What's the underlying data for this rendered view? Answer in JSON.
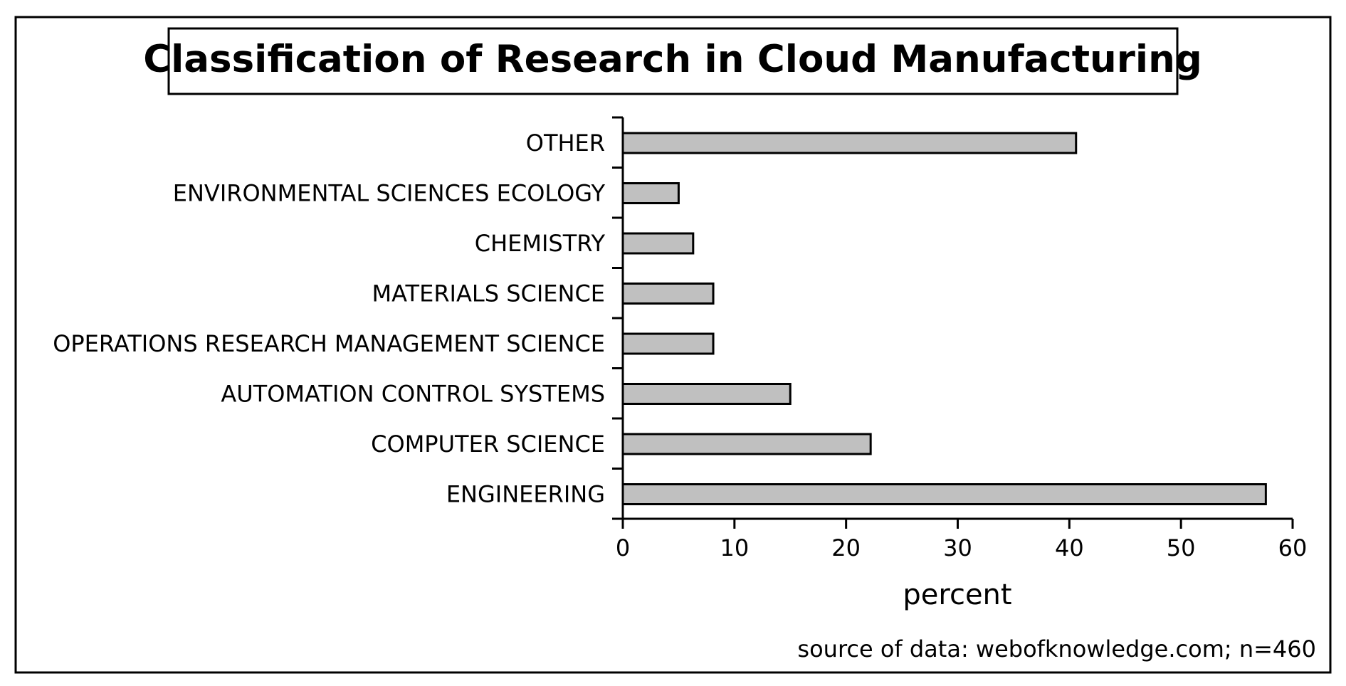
{
  "chart_data": {
    "type": "bar",
    "orientation": "horizontal",
    "title": "Classification of Research in Cloud Manufacturing",
    "xlabel": "percent",
    "ylabel": "",
    "categories": [
      "OTHER",
      "ENVIRONMENTAL SCIENCES ECOLOGY",
      "CHEMISTRY",
      "MATERIALS SCIENCE",
      "OPERATIONS RESEARCH MANAGEMENT SCIENCE",
      "AUTOMATION CONTROL SYSTEMS",
      "COMPUTER SCIENCE",
      "ENGINEERING"
    ],
    "values": [
      40.6,
      5.0,
      6.3,
      8.1,
      8.1,
      15.0,
      22.2,
      57.6
    ],
    "xlim": [
      0,
      60
    ],
    "xticks": [
      0,
      10,
      20,
      30,
      40,
      50,
      60
    ],
    "grid": false,
    "legend": "none",
    "bar_color": "#c0c0c0",
    "annotation": "source of data: webofknowledge.com; n=460"
  }
}
